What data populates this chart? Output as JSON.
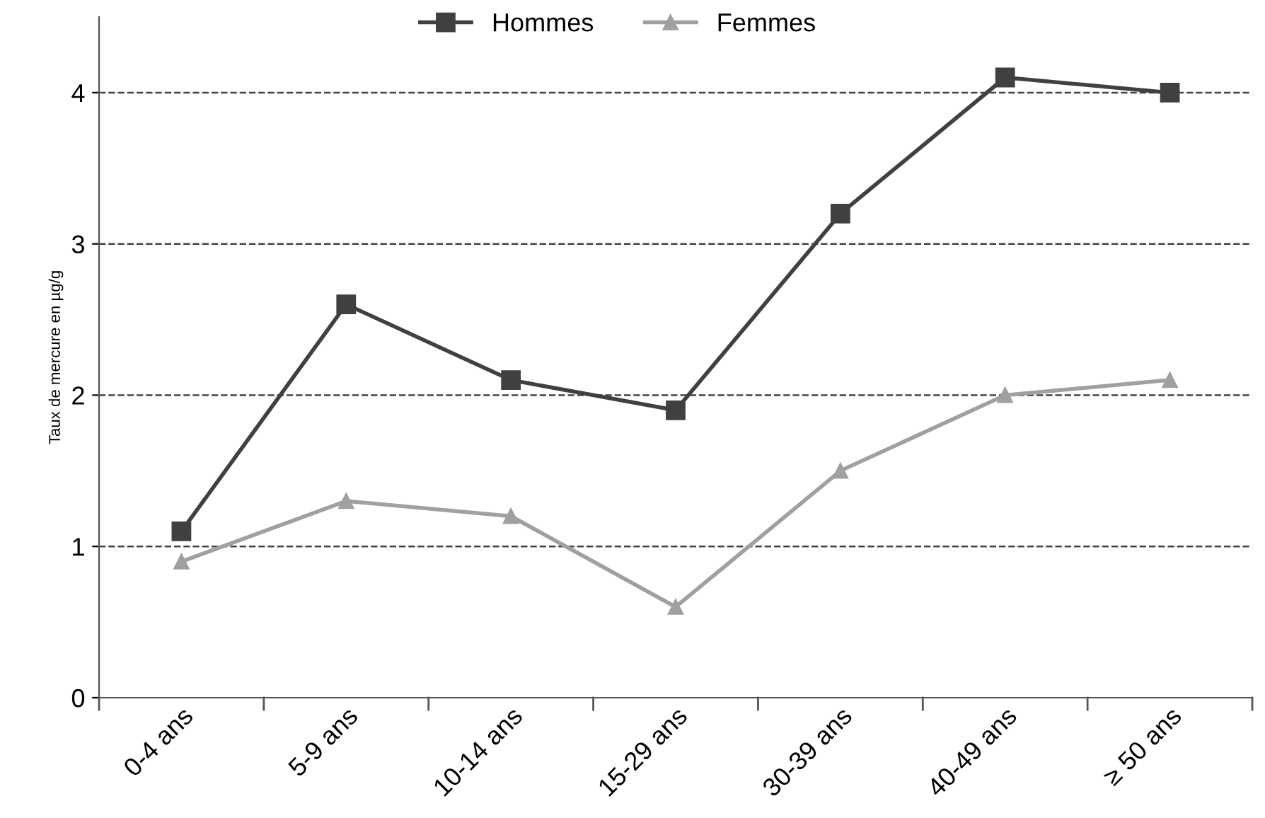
{
  "chart_data": {
    "type": "line",
    "ylabel": "Taux de mercure en µg/g",
    "categories": [
      "0-4 ans",
      "5-9 ans",
      "10-14 ans",
      "15-29 ans",
      "30-39 ans",
      "40-49 ans",
      "≥ 50 ans"
    ],
    "series": [
      {
        "name": "Hommes",
        "color": "#404040",
        "marker": "square",
        "values": [
          1.1,
          2.6,
          2.1,
          1.9,
          3.2,
          4.1,
          4.0
        ]
      },
      {
        "name": "Femmes",
        "color": "#a0a0a0",
        "marker": "triangle",
        "values": [
          0.9,
          1.3,
          1.2,
          0.6,
          1.5,
          2.0,
          2.1
        ]
      }
    ],
    "ylim": [
      0,
      4.5
    ],
    "yticks": [
      0,
      1,
      2,
      3,
      4
    ],
    "grid": "y",
    "legend": "top",
    "line_style": "solid"
  }
}
